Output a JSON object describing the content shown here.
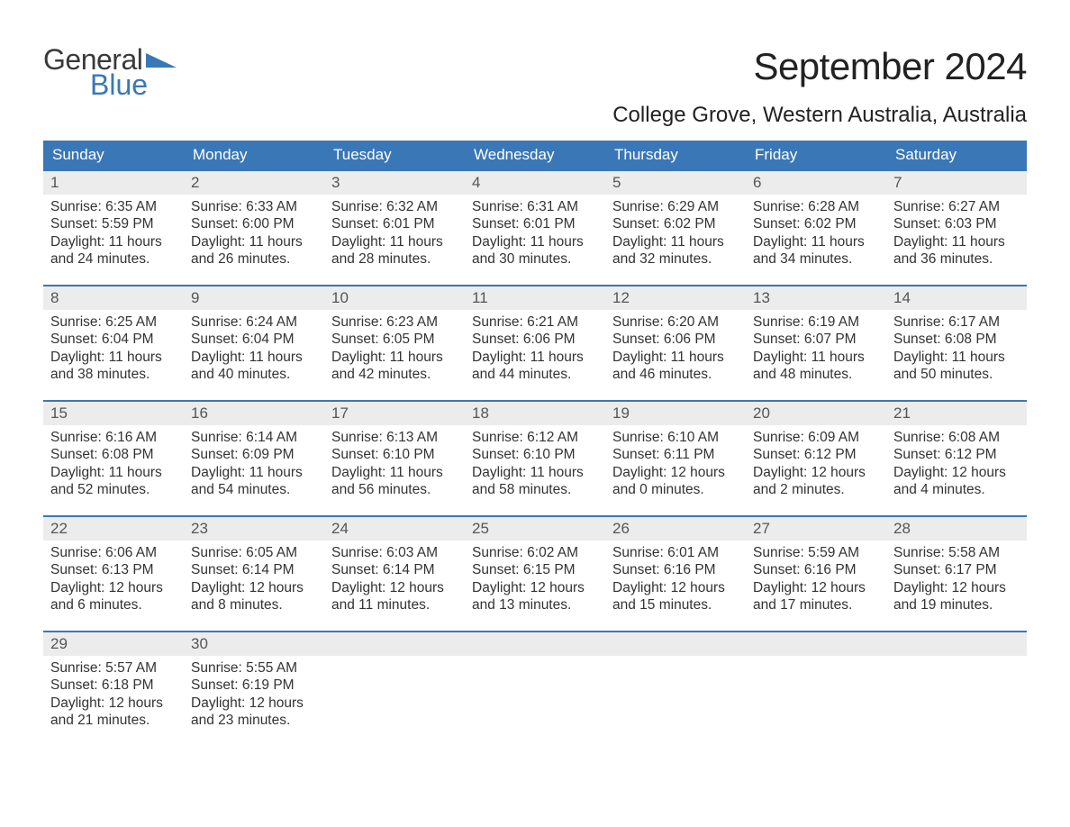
{
  "colors": {
    "accent": "#3a77b7",
    "header_bg": "#3a77b7",
    "daynum_bg": "#ececec",
    "page_bg": "#ffffff",
    "text": "#333333"
  },
  "logo": {
    "word1": "General",
    "word2": "Blue"
  },
  "title": "September 2024",
  "location": "College Grove, Western Australia, Australia",
  "day_headers": [
    "Sunday",
    "Monday",
    "Tuesday",
    "Wednesday",
    "Thursday",
    "Friday",
    "Saturday"
  ],
  "weeks": [
    [
      {
        "n": "1",
        "sr": "Sunrise: 6:35 AM",
        "ss": "Sunset: 5:59 PM",
        "d1": "Daylight: 11 hours",
        "d2": "and 24 minutes."
      },
      {
        "n": "2",
        "sr": "Sunrise: 6:33 AM",
        "ss": "Sunset: 6:00 PM",
        "d1": "Daylight: 11 hours",
        "d2": "and 26 minutes."
      },
      {
        "n": "3",
        "sr": "Sunrise: 6:32 AM",
        "ss": "Sunset: 6:01 PM",
        "d1": "Daylight: 11 hours",
        "d2": "and 28 minutes."
      },
      {
        "n": "4",
        "sr": "Sunrise: 6:31 AM",
        "ss": "Sunset: 6:01 PM",
        "d1": "Daylight: 11 hours",
        "d2": "and 30 minutes."
      },
      {
        "n": "5",
        "sr": "Sunrise: 6:29 AM",
        "ss": "Sunset: 6:02 PM",
        "d1": "Daylight: 11 hours",
        "d2": "and 32 minutes."
      },
      {
        "n": "6",
        "sr": "Sunrise: 6:28 AM",
        "ss": "Sunset: 6:02 PM",
        "d1": "Daylight: 11 hours",
        "d2": "and 34 minutes."
      },
      {
        "n": "7",
        "sr": "Sunrise: 6:27 AM",
        "ss": "Sunset: 6:03 PM",
        "d1": "Daylight: 11 hours",
        "d2": "and 36 minutes."
      }
    ],
    [
      {
        "n": "8",
        "sr": "Sunrise: 6:25 AM",
        "ss": "Sunset: 6:04 PM",
        "d1": "Daylight: 11 hours",
        "d2": "and 38 minutes."
      },
      {
        "n": "9",
        "sr": "Sunrise: 6:24 AM",
        "ss": "Sunset: 6:04 PM",
        "d1": "Daylight: 11 hours",
        "d2": "and 40 minutes."
      },
      {
        "n": "10",
        "sr": "Sunrise: 6:23 AM",
        "ss": "Sunset: 6:05 PM",
        "d1": "Daylight: 11 hours",
        "d2": "and 42 minutes."
      },
      {
        "n": "11",
        "sr": "Sunrise: 6:21 AM",
        "ss": "Sunset: 6:06 PM",
        "d1": "Daylight: 11 hours",
        "d2": "and 44 minutes."
      },
      {
        "n": "12",
        "sr": "Sunrise: 6:20 AM",
        "ss": "Sunset: 6:06 PM",
        "d1": "Daylight: 11 hours",
        "d2": "and 46 minutes."
      },
      {
        "n": "13",
        "sr": "Sunrise: 6:19 AM",
        "ss": "Sunset: 6:07 PM",
        "d1": "Daylight: 11 hours",
        "d2": "and 48 minutes."
      },
      {
        "n": "14",
        "sr": "Sunrise: 6:17 AM",
        "ss": "Sunset: 6:08 PM",
        "d1": "Daylight: 11 hours",
        "d2": "and 50 minutes."
      }
    ],
    [
      {
        "n": "15",
        "sr": "Sunrise: 6:16 AM",
        "ss": "Sunset: 6:08 PM",
        "d1": "Daylight: 11 hours",
        "d2": "and 52 minutes."
      },
      {
        "n": "16",
        "sr": "Sunrise: 6:14 AM",
        "ss": "Sunset: 6:09 PM",
        "d1": "Daylight: 11 hours",
        "d2": "and 54 minutes."
      },
      {
        "n": "17",
        "sr": "Sunrise: 6:13 AM",
        "ss": "Sunset: 6:10 PM",
        "d1": "Daylight: 11 hours",
        "d2": "and 56 minutes."
      },
      {
        "n": "18",
        "sr": "Sunrise: 6:12 AM",
        "ss": "Sunset: 6:10 PM",
        "d1": "Daylight: 11 hours",
        "d2": "and 58 minutes."
      },
      {
        "n": "19",
        "sr": "Sunrise: 6:10 AM",
        "ss": "Sunset: 6:11 PM",
        "d1": "Daylight: 12 hours",
        "d2": "and 0 minutes."
      },
      {
        "n": "20",
        "sr": "Sunrise: 6:09 AM",
        "ss": "Sunset: 6:12 PM",
        "d1": "Daylight: 12 hours",
        "d2": "and 2 minutes."
      },
      {
        "n": "21",
        "sr": "Sunrise: 6:08 AM",
        "ss": "Sunset: 6:12 PM",
        "d1": "Daylight: 12 hours",
        "d2": "and 4 minutes."
      }
    ],
    [
      {
        "n": "22",
        "sr": "Sunrise: 6:06 AM",
        "ss": "Sunset: 6:13 PM",
        "d1": "Daylight: 12 hours",
        "d2": "and 6 minutes."
      },
      {
        "n": "23",
        "sr": "Sunrise: 6:05 AM",
        "ss": "Sunset: 6:14 PM",
        "d1": "Daylight: 12 hours",
        "d2": "and 8 minutes."
      },
      {
        "n": "24",
        "sr": "Sunrise: 6:03 AM",
        "ss": "Sunset: 6:14 PM",
        "d1": "Daylight: 12 hours",
        "d2": "and 11 minutes."
      },
      {
        "n": "25",
        "sr": "Sunrise: 6:02 AM",
        "ss": "Sunset: 6:15 PM",
        "d1": "Daylight: 12 hours",
        "d2": "and 13 minutes."
      },
      {
        "n": "26",
        "sr": "Sunrise: 6:01 AM",
        "ss": "Sunset: 6:16 PM",
        "d1": "Daylight: 12 hours",
        "d2": "and 15 minutes."
      },
      {
        "n": "27",
        "sr": "Sunrise: 5:59 AM",
        "ss": "Sunset: 6:16 PM",
        "d1": "Daylight: 12 hours",
        "d2": "and 17 minutes."
      },
      {
        "n": "28",
        "sr": "Sunrise: 5:58 AM",
        "ss": "Sunset: 6:17 PM",
        "d1": "Daylight: 12 hours",
        "d2": "and 19 minutes."
      }
    ],
    [
      {
        "n": "29",
        "sr": "Sunrise: 5:57 AM",
        "ss": "Sunset: 6:18 PM",
        "d1": "Daylight: 12 hours",
        "d2": "and 21 minutes."
      },
      {
        "n": "30",
        "sr": "Sunrise: 5:55 AM",
        "ss": "Sunset: 6:19 PM",
        "d1": "Daylight: 12 hours",
        "d2": "and 23 minutes."
      },
      {
        "empty": true
      },
      {
        "empty": true
      },
      {
        "empty": true
      },
      {
        "empty": true
      },
      {
        "empty": true
      }
    ]
  ]
}
